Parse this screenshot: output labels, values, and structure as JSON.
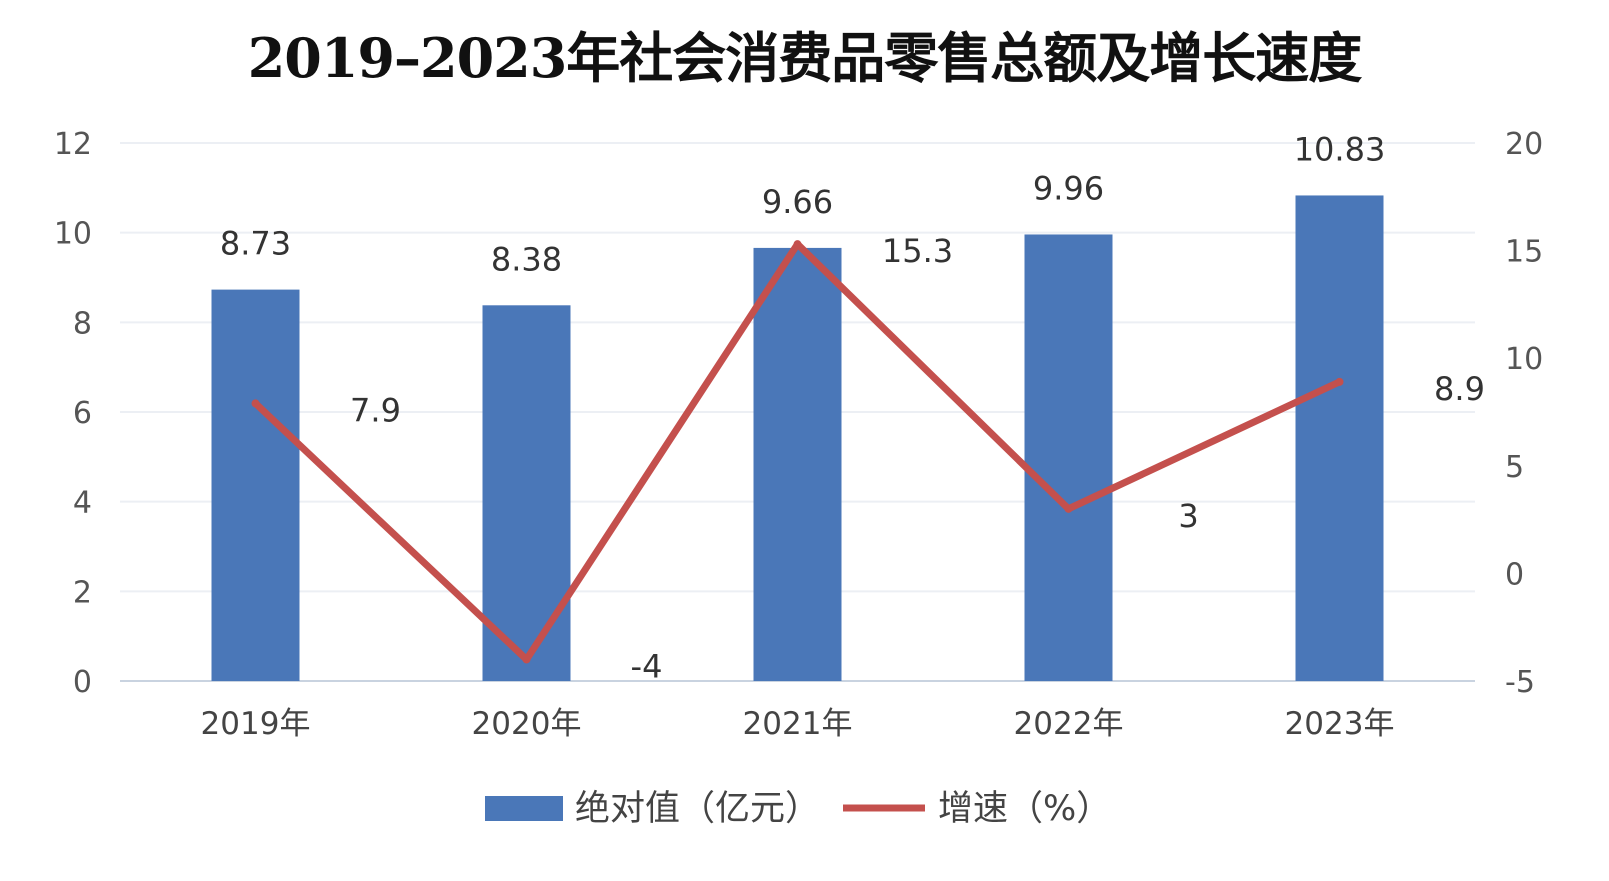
{
  "chart_data": {
    "type": "bar",
    "title": "2019–2023年社会消费品零售总额及增长速度",
    "categories": [
      "2019年",
      "2020年",
      "2021年",
      "2022年",
      "2023年"
    ],
    "series": [
      {
        "name": "绝对值（亿元）",
        "type": "bar",
        "axis": "left",
        "values": [
          8.73,
          8.38,
          9.66,
          9.96,
          10.83
        ],
        "labels": [
          "8.73",
          "8.38",
          "9.66",
          "9.96",
          "10.83"
        ],
        "color": "#4a77b8"
      },
      {
        "name": "增速（%）",
        "type": "line",
        "axis": "right",
        "values": [
          7.9,
          -4,
          15.3,
          3,
          8.9
        ],
        "labels": [
          "7.9",
          "-4",
          "15.3",
          "3",
          "8.9"
        ],
        "color": "#c4504d"
      }
    ],
    "y_left": {
      "min": 0,
      "max": 12,
      "ticks": [
        "0",
        "2",
        "4",
        "6",
        "8",
        "10",
        "12"
      ]
    },
    "y_right": {
      "min": -5,
      "max": 20,
      "ticks": [
        "-5",
        "0",
        "5",
        "10",
        "15",
        "20"
      ]
    },
    "grid": true,
    "legend": "bottom-center"
  }
}
